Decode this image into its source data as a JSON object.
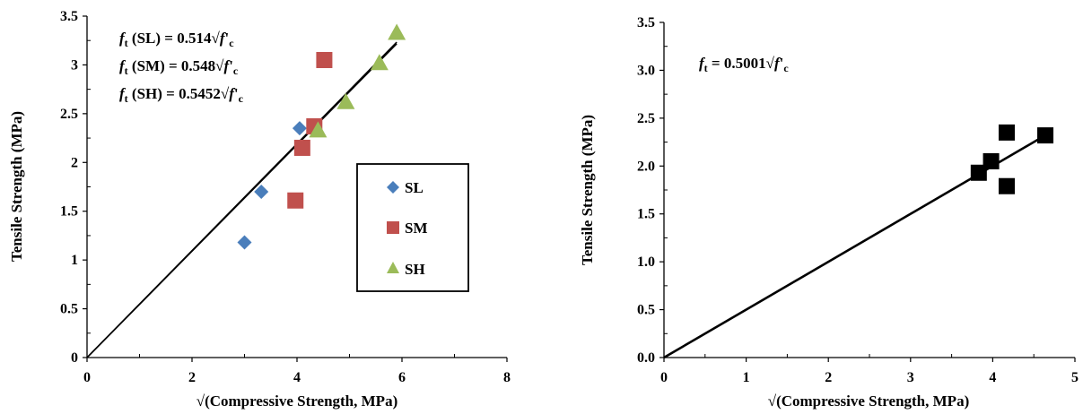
{
  "chart_data": [
    {
      "type": "scatter",
      "title": "",
      "xlabel": "√(Compressive Strength, MPa)",
      "ylabel": "Tensile Strength (MPa)",
      "xlim": [
        0,
        8
      ],
      "ylim": [
        0,
        3.5
      ],
      "xticks": [
        "0",
        "2",
        "4",
        "6",
        "8"
      ],
      "yticks": [
        "0",
        "0.5",
        "1",
        "1.5",
        "2",
        "2.5",
        "3",
        "3.5"
      ],
      "grid": false,
      "legend_position": "right",
      "series": [
        {
          "name": "SL",
          "marker": "diamond",
          "color": "#4a7ebb",
          "x": [
            3.0,
            3.32,
            4.05
          ],
          "y": [
            1.18,
            1.7,
            2.35
          ]
        },
        {
          "name": "SM",
          "marker": "square",
          "color": "#c0504d",
          "x": [
            3.97,
            4.1,
            4.33,
            4.52
          ],
          "y": [
            1.61,
            2.15,
            2.37,
            3.05
          ]
        },
        {
          "name": "SH",
          "marker": "triangle",
          "color": "#9bbb59",
          "x": [
            4.4,
            4.93,
            5.57,
            5.9
          ],
          "y": [
            2.33,
            2.62,
            3.02,
            3.33
          ]
        }
      ],
      "fit_lines": [
        {
          "slope": 0.548,
          "x_end": 5.9
        },
        {
          "slope": 0.5452,
          "x_end": 5.9
        }
      ],
      "annotations": [
        {
          "sub": "t",
          "label": " (SL) = 0.514√",
          "sup": "'",
          "sub2": "c"
        },
        {
          "sub": "t",
          "label": " (SM) = 0.548√",
          "sup": "'",
          "sub2": "c"
        },
        {
          "sub": "t",
          "label": " (SH) = 0.5452√",
          "sup": "'",
          "sub2": "c"
        }
      ]
    },
    {
      "type": "scatter",
      "title": "",
      "xlabel": "√(Compressive Strength, MPa)",
      "ylabel": "Tensile Strength (MPa)",
      "xlim": [
        0,
        5
      ],
      "ylim": [
        0,
        3.5
      ],
      "xticks": [
        "0",
        "1",
        "2",
        "3",
        "4",
        "5"
      ],
      "yticks": [
        "0.0",
        "0.5",
        "1.0",
        "1.5",
        "2.0",
        "2.5",
        "3.0",
        "3.5"
      ],
      "grid": false,
      "series": [
        {
          "marker": "square",
          "color": "#000000",
          "x": [
            3.83,
            3.98,
            4.17,
            4.17,
            4.64
          ],
          "y": [
            1.93,
            2.05,
            2.35,
            1.79,
            2.32
          ]
        }
      ],
      "fit_lines": [
        {
          "slope": 0.5001,
          "x_end": 4.64
        }
      ],
      "annotations": [
        {
          "sub": "t",
          "label": " = 0.5001√",
          "sup": "'",
          "sub2": "c"
        }
      ]
    }
  ]
}
